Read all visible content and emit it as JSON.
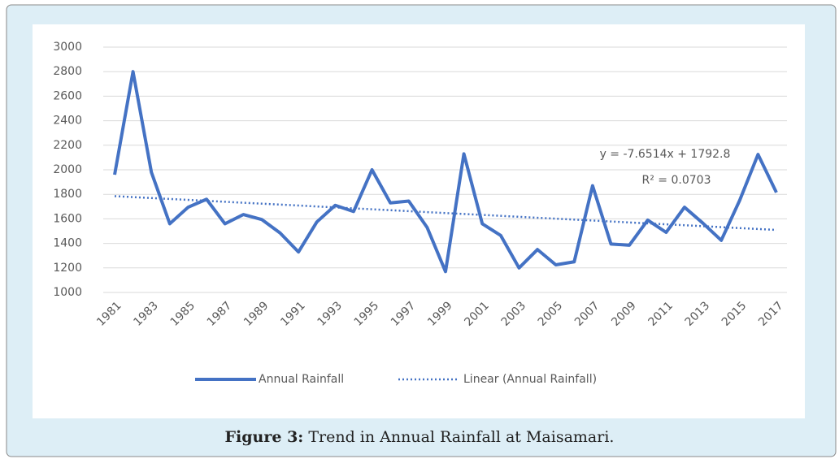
{
  "chart_data": {
    "type": "line",
    "categories": [
      "1981",
      null,
      "1983",
      null,
      "1985",
      null,
      "1987",
      null,
      "1989",
      null,
      "1991",
      null,
      "1993",
      null,
      "1995",
      null,
      "1997",
      null,
      "1999",
      null,
      "2001",
      null,
      "2003",
      null,
      "2005",
      null,
      "2007",
      null,
      "2009",
      null,
      "2011",
      null,
      "2013",
      null,
      "2015",
      null,
      "2017"
    ],
    "series": [
      {
        "name": "Annual Rainfall",
        "color": "#4472c4",
        "values": [
          1960,
          2800,
          1980,
          1560,
          1695,
          1760,
          1560,
          1635,
          1595,
          1485,
          1330,
          1575,
          1710,
          1660,
          2000,
          1730,
          1745,
          1530,
          1170,
          2130,
          1560,
          1465,
          1200,
          1350,
          1225,
          1250,
          1870,
          1395,
          1385,
          1590,
          1490,
          1695,
          1565,
          1425,
          1750,
          2125,
          1815
        ]
      }
    ],
    "trendline": {
      "name": "Linear (Annual Rainfall)",
      "color": "#4472c4",
      "slope": -7.6514,
      "intercept": 1792.8,
      "equation": "y = -7.6514x + 1792.8",
      "r2_label": "R² = 0.0703"
    },
    "ylim": [
      1000,
      3000
    ],
    "yticks": [
      1000,
      1200,
      1400,
      1600,
      1800,
      2000,
      2200,
      2400,
      2600,
      2800,
      3000
    ],
    "grid": true,
    "legend": "bottom"
  },
  "caption": {
    "label": "Figure 3:",
    "text": "Trend in Annual Rainfall at Maisamari."
  }
}
